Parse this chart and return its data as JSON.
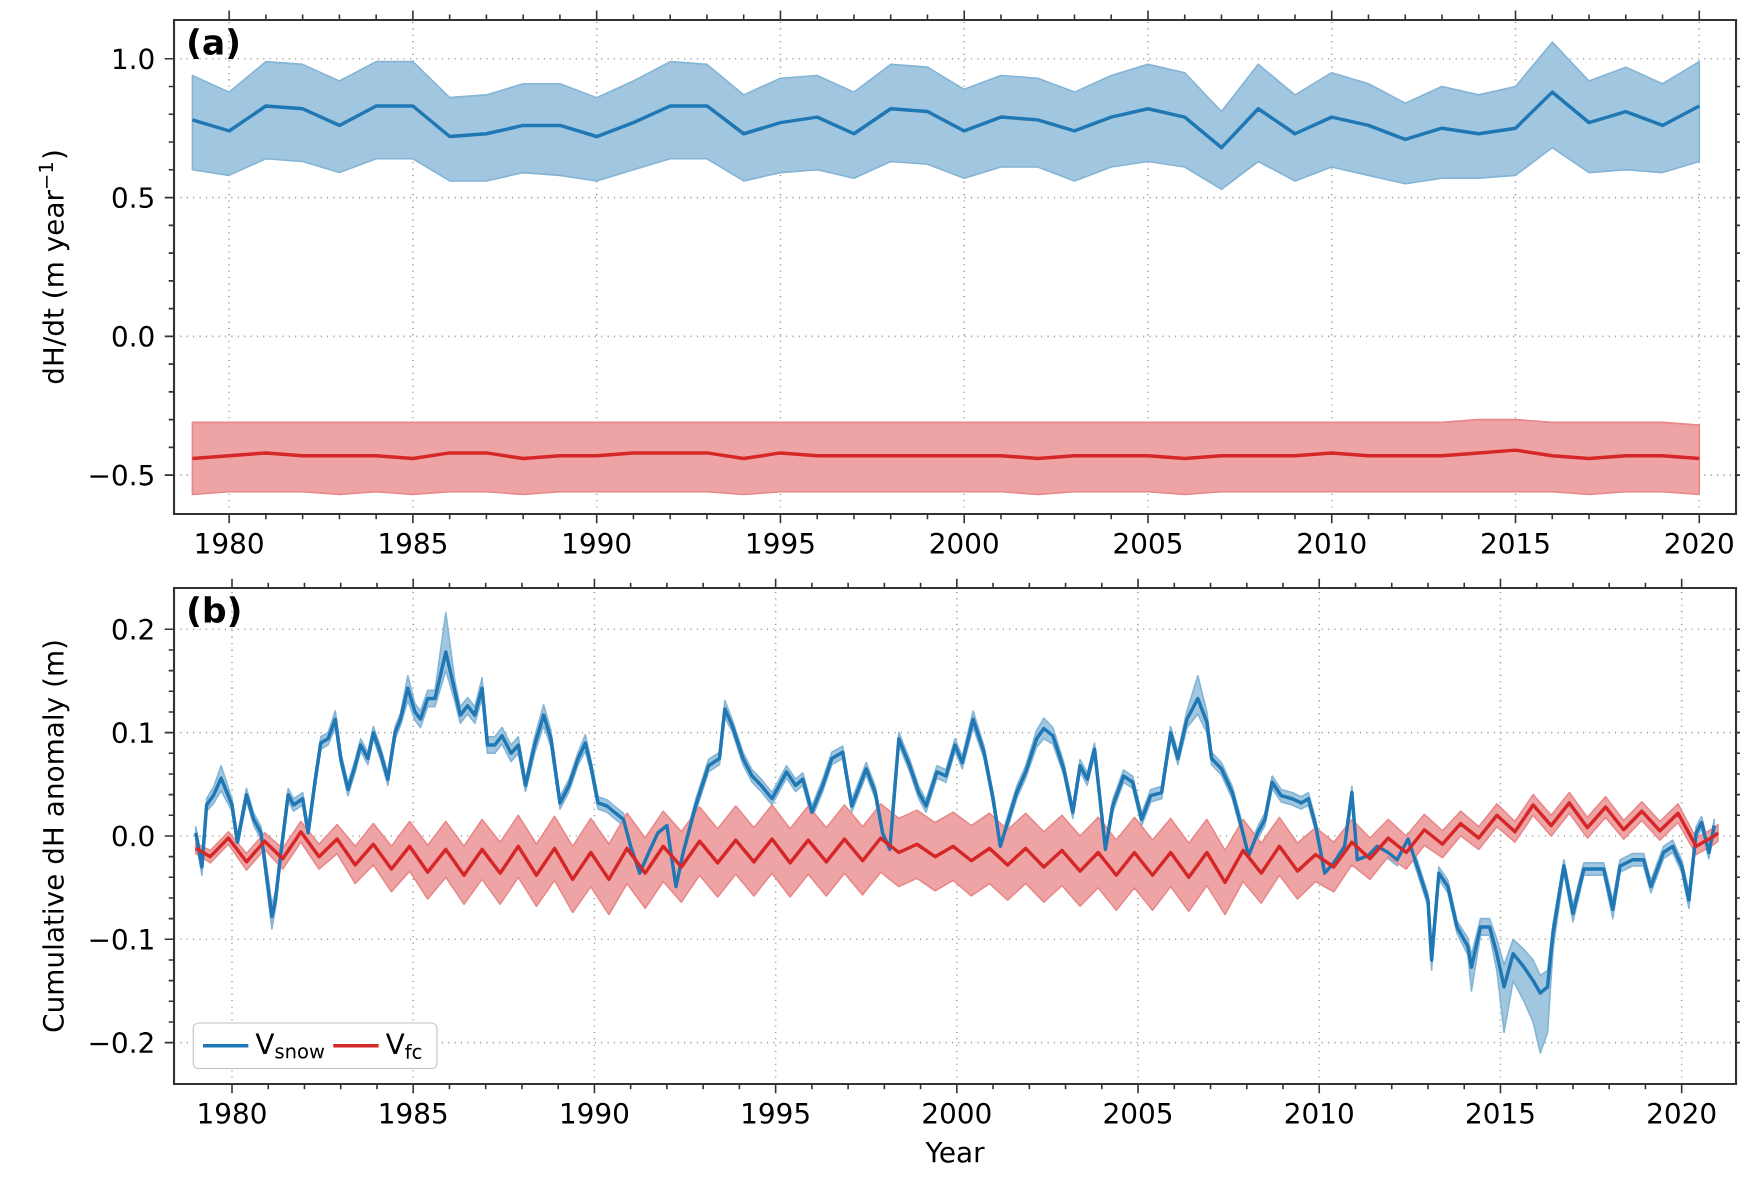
{
  "chart_data": [
    {
      "type": "line",
      "title": "(a)",
      "ylabel": "dH/dt (m year$^{−1}$)",
      "grid": true,
      "xlim": [
        1978.5,
        2021.0
      ],
      "ylim": [
        -0.64,
        1.14
      ],
      "xticks": [
        1980,
        1985,
        1990,
        1995,
        2000,
        2005,
        2010,
        2015,
        2020
      ],
      "yticks": [
        {
          "value": -0.5,
          "label": "−0.5"
        },
        {
          "value": 0.0,
          "label": "0.0"
        },
        {
          "value": 0.5,
          "label": "0.5"
        },
        {
          "value": 1.0,
          "label": "1.0"
        }
      ],
      "x": [
        1979,
        1980,
        1981,
        1982,
        1983,
        1984,
        1985,
        1986,
        1987,
        1988,
        1989,
        1990,
        1991,
        1992,
        1993,
        1994,
        1995,
        1996,
        1997,
        1998,
        1999,
        2000,
        2001,
        2002,
        2003,
        2004,
        2005,
        2006,
        2007,
        2008,
        2009,
        2010,
        2011,
        2012,
        2013,
        2014,
        2015,
        2016,
        2017,
        2018,
        2019,
        2020
      ],
      "series": [
        {
          "color": "#1f77b4",
          "values": [
            0.78,
            0.74,
            0.83,
            0.82,
            0.76,
            0.83,
            0.83,
            0.72,
            0.73,
            0.76,
            0.76,
            0.72,
            0.77,
            0.83,
            0.83,
            0.73,
            0.77,
            0.79,
            0.73,
            0.82,
            0.81,
            0.74,
            0.79,
            0.78,
            0.74,
            0.79,
            0.82,
            0.79,
            0.68,
            0.82,
            0.73,
            0.79,
            0.76,
            0.71,
            0.75,
            0.73,
            0.75,
            0.88,
            0.77,
            0.81,
            0.76,
            0.83
          ],
          "lower": [
            0.6,
            0.58,
            0.64,
            0.63,
            0.59,
            0.64,
            0.64,
            0.56,
            0.56,
            0.59,
            0.58,
            0.56,
            0.6,
            0.64,
            0.64,
            0.56,
            0.59,
            0.6,
            0.57,
            0.63,
            0.62,
            0.57,
            0.61,
            0.61,
            0.56,
            0.61,
            0.63,
            0.61,
            0.53,
            0.63,
            0.56,
            0.61,
            0.58,
            0.55,
            0.57,
            0.57,
            0.58,
            0.68,
            0.59,
            0.6,
            0.59,
            0.63
          ],
          "upper": [
            0.94,
            0.88,
            0.99,
            0.98,
            0.92,
            0.99,
            0.99,
            0.86,
            0.87,
            0.91,
            0.91,
            0.86,
            0.92,
            0.99,
            0.98,
            0.87,
            0.93,
            0.94,
            0.88,
            0.98,
            0.97,
            0.89,
            0.94,
            0.93,
            0.88,
            0.94,
            0.98,
            0.95,
            0.81,
            0.98,
            0.87,
            0.95,
            0.91,
            0.84,
            0.9,
            0.87,
            0.9,
            1.06,
            0.92,
            0.97,
            0.91,
            0.99
          ]
        },
        {
          "color": "#d62728",
          "values": [
            -0.44,
            -0.43,
            -0.42,
            -0.43,
            -0.43,
            -0.43,
            -0.44,
            -0.42,
            -0.42,
            -0.44,
            -0.43,
            -0.43,
            -0.42,
            -0.42,
            -0.42,
            -0.44,
            -0.42,
            -0.43,
            -0.43,
            -0.43,
            -0.43,
            -0.43,
            -0.43,
            -0.44,
            -0.43,
            -0.43,
            -0.43,
            -0.44,
            -0.43,
            -0.43,
            -0.43,
            -0.42,
            -0.43,
            -0.43,
            -0.43,
            -0.42,
            -0.41,
            -0.43,
            -0.44,
            -0.43,
            -0.43,
            -0.44
          ],
          "lower": [
            -0.57,
            -0.56,
            -0.56,
            -0.56,
            -0.57,
            -0.56,
            -0.57,
            -0.56,
            -0.56,
            -0.57,
            -0.56,
            -0.56,
            -0.56,
            -0.56,
            -0.56,
            -0.57,
            -0.56,
            -0.56,
            -0.56,
            -0.56,
            -0.56,
            -0.56,
            -0.56,
            -0.57,
            -0.56,
            -0.56,
            -0.56,
            -0.57,
            -0.56,
            -0.56,
            -0.56,
            -0.56,
            -0.56,
            -0.56,
            -0.56,
            -0.56,
            -0.56,
            -0.56,
            -0.57,
            -0.56,
            -0.56,
            -0.57
          ],
          "upper": [
            -0.31,
            -0.31,
            -0.31,
            -0.31,
            -0.31,
            -0.31,
            -0.31,
            -0.31,
            -0.31,
            -0.31,
            -0.31,
            -0.31,
            -0.31,
            -0.31,
            -0.31,
            -0.31,
            -0.31,
            -0.31,
            -0.31,
            -0.31,
            -0.31,
            -0.31,
            -0.31,
            -0.31,
            -0.31,
            -0.31,
            -0.31,
            -0.31,
            -0.31,
            -0.31,
            -0.31,
            -0.31,
            -0.31,
            -0.31,
            -0.31,
            -0.3,
            -0.3,
            -0.31,
            -0.31,
            -0.31,
            -0.31,
            -0.32
          ]
        }
      ]
    },
    {
      "type": "line",
      "title": "(b)",
      "xlabel": "Year",
      "ylabel": "Cumulative dH anomaly (m)",
      "grid": true,
      "legend": "bottom left",
      "xlim": [
        1978.4,
        2021.5
      ],
      "ylim": [
        -0.24,
        0.24
      ],
      "xticks": [
        1980,
        1985,
        1990,
        1995,
        2000,
        2005,
        2010,
        2015,
        2020
      ],
      "yticks": [
        {
          "value": -0.2,
          "label": "−0.2"
        },
        {
          "value": -0.1,
          "label": "−0.1"
        },
        {
          "value": 0.0,
          "label": "0.0"
        },
        {
          "value": 0.1,
          "label": "0.1"
        },
        {
          "value": 0.2,
          "label": "0.2"
        }
      ],
      "series": [
        {
          "name": "V$_{snow}$",
          "color": "#1f77b4",
          "x": [
            1979.0,
            1979.17,
            1979.3,
            1979.5,
            1979.7,
            1980.0,
            1980.15,
            1980.4,
            1980.6,
            1980.8,
            1981.1,
            1981.2,
            1981.35,
            1981.55,
            1981.7,
            1981.95,
            1982.1,
            1982.3,
            1982.45,
            1982.65,
            1982.85,
            1983.0,
            1983.2,
            1983.4,
            1983.55,
            1983.75,
            1983.9,
            1984.1,
            1984.3,
            1984.5,
            1984.65,
            1984.85,
            1985.05,
            1985.2,
            1985.4,
            1985.6,
            1985.9,
            1986.15,
            1986.3,
            1986.5,
            1986.7,
            1986.9,
            1987.05,
            1987.25,
            1987.45,
            1987.7,
            1987.9,
            1988.1,
            1988.35,
            1988.6,
            1988.8,
            1989.05,
            1989.3,
            1989.55,
            1989.75,
            1989.9,
            1990.1,
            1990.35,
            1990.55,
            1990.8,
            1991.0,
            1991.25,
            1991.5,
            1991.75,
            1992.0,
            1992.25,
            1992.45,
            1992.8,
            1993.15,
            1993.45,
            1993.6,
            1993.8,
            1994.1,
            1994.35,
            1994.6,
            1994.9,
            1995.3,
            1995.55,
            1995.75,
            1996.0,
            1996.3,
            1996.55,
            1996.85,
            1997.1,
            1997.5,
            1997.75,
            1997.95,
            1998.15,
            1998.4,
            1998.7,
            1998.95,
            1999.15,
            1999.45,
            1999.7,
            1999.95,
            2000.15,
            2000.45,
            2000.75,
            2001.0,
            2001.2,
            2001.4,
            2001.65,
            2001.9,
            2002.2,
            2002.4,
            2002.65,
            2002.95,
            2003.2,
            2003.4,
            2003.6,
            2003.8,
            2004.1,
            2004.3,
            2004.6,
            2004.85,
            2005.1,
            2005.35,
            2005.65,
            2005.9,
            2006.1,
            2006.35,
            2006.65,
            2006.9,
            2007.03,
            2007.3,
            2007.6,
            2007.8,
            2008.05,
            2008.3,
            2008.5,
            2008.7,
            2008.95,
            2009.25,
            2009.5,
            2009.7,
            2009.9,
            2010.15,
            2010.4,
            2010.7,
            2010.9,
            2011.05,
            2011.35,
            2011.6,
            2011.9,
            2012.15,
            2012.45,
            2012.7,
            2013.0,
            2013.1,
            2013.3,
            2013.55,
            2013.8,
            2014.1,
            2014.2,
            2014.45,
            2014.7,
            2014.9,
            2015.1,
            2015.35,
            2015.65,
            2015.9,
            2016.1,
            2016.3,
            2016.45,
            2016.75,
            2017.0,
            2017.3,
            2017.55,
            2017.85,
            2018.1,
            2018.3,
            2018.65,
            2018.95,
            2019.15,
            2019.5,
            2019.75,
            2020.0,
            2020.2,
            2020.4,
            2020.55,
            2020.75,
            2020.9
          ],
          "values": [
            0.003,
            -0.03,
            0.03,
            0.04,
            0.056,
            0.03,
            -0.006,
            0.04,
            0.016,
            0.003,
            -0.078,
            -0.062,
            -0.016,
            0.04,
            0.03,
            0.036,
            0.003,
            0.055,
            0.09,
            0.094,
            0.113,
            0.075,
            0.045,
            0.068,
            0.088,
            0.075,
            0.1,
            0.08,
            0.055,
            0.1,
            0.113,
            0.143,
            0.12,
            0.113,
            0.133,
            0.133,
            0.178,
            0.14,
            0.117,
            0.126,
            0.117,
            0.143,
            0.088,
            0.088,
            0.097,
            0.08,
            0.088,
            0.049,
            0.088,
            0.117,
            0.094,
            0.032,
            0.049,
            0.075,
            0.09,
            0.068,
            0.032,
            0.029,
            0.023,
            0.016,
            -0.01,
            -0.036,
            -0.016,
            0.003,
            0.01,
            -0.049,
            -0.016,
            0.03,
            0.068,
            0.075,
            0.123,
            0.107,
            0.075,
            0.058,
            0.049,
            0.036,
            0.062,
            0.049,
            0.055,
            0.023,
            0.049,
            0.075,
            0.081,
            0.029,
            0.065,
            0.042,
            0.003,
            -0.013,
            0.094,
            0.068,
            0.042,
            0.029,
            0.062,
            0.058,
            0.088,
            0.071,
            0.113,
            0.081,
            0.036,
            -0.01,
            0.013,
            0.042,
            0.062,
            0.094,
            0.104,
            0.097,
            0.065,
            0.023,
            0.068,
            0.055,
            0.084,
            -0.013,
            0.029,
            0.058,
            0.052,
            0.016,
            0.039,
            0.042,
            0.1,
            0.075,
            0.113,
            0.133,
            0.11,
            0.075,
            0.065,
            0.042,
            0.016,
            -0.019,
            0.003,
            0.016,
            0.052,
            0.039,
            0.036,
            0.032,
            0.036,
            0.01,
            -0.036,
            -0.026,
            -0.01,
            0.042,
            -0.023,
            -0.019,
            -0.01,
            -0.016,
            -0.023,
            -0.003,
            -0.029,
            -0.062,
            -0.12,
            -0.036,
            -0.049,
            -0.088,
            -0.107,
            -0.127,
            -0.088,
            -0.088,
            -0.114,
            -0.146,
            -0.114,
            -0.127,
            -0.14,
            -0.152,
            -0.146,
            -0.094,
            -0.029,
            -0.075,
            -0.032,
            -0.032,
            -0.032,
            -0.071,
            -0.029,
            -0.023,
            -0.023,
            -0.049,
            -0.016,
            -0.01,
            -0.029,
            -0.062,
            0.003,
            0.013,
            -0.016,
            0.01
          ],
          "lower": [
            -0.003,
            -0.038,
            0.024,
            0.032,
            0.044,
            0.024,
            -0.012,
            0.034,
            0.01,
            -0.003,
            -0.09,
            -0.07,
            -0.022,
            0.034,
            0.024,
            0.03,
            -0.003,
            0.049,
            0.084,
            0.088,
            0.105,
            0.069,
            0.039,
            0.062,
            0.082,
            0.069,
            0.094,
            0.074,
            0.049,
            0.094,
            0.107,
            0.131,
            0.112,
            0.105,
            0.125,
            0.125,
            0.16,
            0.13,
            0.109,
            0.118,
            0.109,
            0.133,
            0.08,
            0.08,
            0.089,
            0.072,
            0.08,
            0.043,
            0.08,
            0.107,
            0.086,
            0.026,
            0.043,
            0.069,
            0.082,
            0.062,
            0.026,
            0.023,
            0.017,
            0.01,
            -0.016,
            -0.042,
            -0.022,
            -0.003,
            0.004,
            -0.057,
            -0.022,
            0.024,
            0.062,
            0.069,
            0.115,
            0.101,
            0.069,
            0.052,
            0.043,
            0.03,
            0.056,
            0.043,
            0.049,
            0.017,
            0.043,
            0.069,
            0.075,
            0.023,
            0.059,
            0.036,
            -0.003,
            -0.021,
            0.088,
            0.062,
            0.036,
            0.023,
            0.056,
            0.052,
            0.082,
            0.065,
            0.105,
            0.075,
            0.03,
            -0.016,
            0.007,
            0.036,
            0.056,
            0.086,
            0.094,
            0.089,
            0.059,
            0.017,
            0.062,
            0.049,
            0.078,
            -0.019,
            0.023,
            0.052,
            0.046,
            0.01,
            0.033,
            0.036,
            0.094,
            0.069,
            0.105,
            0.118,
            0.1,
            0.069,
            0.059,
            0.036,
            0.01,
            -0.025,
            -0.003,
            0.01,
            0.046,
            0.033,
            0.03,
            0.026,
            0.03,
            0.004,
            -0.044,
            -0.032,
            -0.016,
            0.036,
            -0.029,
            -0.025,
            -0.016,
            -0.022,
            -0.029,
            -0.009,
            -0.035,
            -0.068,
            -0.13,
            -0.042,
            -0.055,
            -0.094,
            -0.115,
            -0.15,
            -0.096,
            -0.096,
            -0.13,
            -0.19,
            -0.14,
            -0.16,
            -0.18,
            -0.21,
            -0.19,
            -0.11,
            -0.035,
            -0.083,
            -0.038,
            -0.038,
            -0.038,
            -0.08,
            -0.035,
            -0.029,
            -0.029,
            -0.055,
            -0.022,
            -0.016,
            -0.035,
            -0.07,
            -0.003,
            0.007,
            -0.022,
            0.004
          ],
          "upper": [
            0.009,
            -0.022,
            0.036,
            0.048,
            0.068,
            0.036,
            0.0,
            0.046,
            0.022,
            0.009,
            -0.066,
            -0.054,
            -0.01,
            0.046,
            0.036,
            0.042,
            0.009,
            0.061,
            0.096,
            0.1,
            0.121,
            0.081,
            0.051,
            0.074,
            0.094,
            0.081,
            0.106,
            0.086,
            0.061,
            0.106,
            0.119,
            0.155,
            0.128,
            0.121,
            0.141,
            0.141,
            0.216,
            0.15,
            0.125,
            0.134,
            0.125,
            0.153,
            0.096,
            0.096,
            0.105,
            0.088,
            0.096,
            0.055,
            0.096,
            0.127,
            0.102,
            0.038,
            0.055,
            0.081,
            0.098,
            0.074,
            0.038,
            0.035,
            0.029,
            0.022,
            -0.004,
            -0.03,
            -0.01,
            0.009,
            0.016,
            -0.041,
            -0.01,
            0.036,
            0.074,
            0.081,
            0.131,
            0.113,
            0.081,
            0.064,
            0.055,
            0.042,
            0.068,
            0.055,
            0.061,
            0.029,
            0.055,
            0.081,
            0.087,
            0.035,
            0.071,
            0.048,
            0.009,
            -0.005,
            0.1,
            0.074,
            0.048,
            0.035,
            0.068,
            0.064,
            0.094,
            0.077,
            0.121,
            0.087,
            0.042,
            -0.004,
            0.019,
            0.048,
            0.068,
            0.102,
            0.114,
            0.105,
            0.071,
            0.029,
            0.074,
            0.061,
            0.09,
            -0.007,
            0.035,
            0.064,
            0.058,
            0.022,
            0.045,
            0.048,
            0.106,
            0.081,
            0.121,
            0.155,
            0.12,
            0.081,
            0.071,
            0.048,
            0.022,
            -0.013,
            0.009,
            0.022,
            0.058,
            0.045,
            0.042,
            0.038,
            0.042,
            0.016,
            -0.028,
            -0.02,
            -0.004,
            0.048,
            -0.017,
            -0.013,
            -0.004,
            -0.01,
            -0.017,
            0.003,
            -0.023,
            -0.056,
            -0.11,
            -0.03,
            -0.043,
            -0.082,
            -0.099,
            -0.115,
            -0.08,
            -0.08,
            -0.1,
            -0.125,
            -0.1,
            -0.11,
            -0.12,
            -0.135,
            -0.13,
            -0.085,
            -0.023,
            -0.067,
            -0.026,
            -0.026,
            -0.026,
            -0.062,
            -0.023,
            -0.017,
            -0.017,
            -0.043,
            -0.01,
            -0.004,
            -0.023,
            -0.054,
            0.009,
            0.019,
            -0.01,
            0.016
          ]
        },
        {
          "name": "V$_{fc}$",
          "color": "#d62728",
          "x": [
            1979.0,
            1979.4,
            1979.9,
            1980.4,
            1980.9,
            1981.4,
            1981.9,
            1982.4,
            1982.9,
            1983.4,
            1983.9,
            1984.4,
            1984.9,
            1985.4,
            1985.9,
            1986.4,
            1986.9,
            1987.4,
            1987.9,
            1988.4,
            1988.9,
            1989.4,
            1989.9,
            1990.4,
            1990.9,
            1991.4,
            1991.9,
            1992.4,
            1992.9,
            1993.4,
            1993.9,
            1994.4,
            1994.9,
            1995.4,
            1995.9,
            1996.4,
            1996.9,
            1997.4,
            1997.9,
            1998.4,
            1998.9,
            1999.4,
            1999.9,
            2000.4,
            2000.9,
            2001.4,
            2001.9,
            2002.4,
            2002.9,
            2003.4,
            2003.9,
            2004.4,
            2004.9,
            2005.4,
            2005.9,
            2006.4,
            2006.9,
            2007.4,
            2007.9,
            2008.4,
            2008.9,
            2009.4,
            2009.9,
            2010.4,
            2010.9,
            2011.4,
            2011.9,
            2012.4,
            2012.9,
            2013.4,
            2013.9,
            2014.4,
            2014.9,
            2015.4,
            2015.9,
            2016.4,
            2016.9,
            2017.4,
            2017.9,
            2018.4,
            2018.9,
            2019.4,
            2019.9,
            2020.4,
            2020.9,
            2021.0
          ],
          "values": [
            -0.012,
            -0.02,
            -0.002,
            -0.025,
            -0.005,
            -0.022,
            0.004,
            -0.02,
            -0.003,
            -0.028,
            -0.008,
            -0.032,
            -0.01,
            -0.035,
            -0.013,
            -0.038,
            -0.013,
            -0.036,
            -0.01,
            -0.038,
            -0.012,
            -0.042,
            -0.016,
            -0.042,
            -0.012,
            -0.036,
            -0.01,
            -0.03,
            -0.005,
            -0.026,
            -0.004,
            -0.025,
            -0.003,
            -0.026,
            -0.004,
            -0.025,
            -0.003,
            -0.024,
            -0.002,
            -0.016,
            -0.008,
            -0.02,
            -0.01,
            -0.024,
            -0.012,
            -0.028,
            -0.012,
            -0.03,
            -0.014,
            -0.034,
            -0.016,
            -0.038,
            -0.016,
            -0.038,
            -0.016,
            -0.04,
            -0.016,
            -0.045,
            -0.014,
            -0.036,
            -0.01,
            -0.034,
            -0.018,
            -0.03,
            -0.006,
            -0.022,
            -0.002,
            -0.016,
            0.006,
            -0.008,
            0.012,
            -0.002,
            0.02,
            0.004,
            0.03,
            0.01,
            0.032,
            0.008,
            0.028,
            0.006,
            0.024,
            0.005,
            0.022,
            -0.01,
            0.0,
            0.003
          ],
          "lower": [
            -0.017,
            -0.026,
            -0.008,
            -0.033,
            -0.013,
            -0.032,
            -0.006,
            -0.032,
            -0.017,
            -0.046,
            -0.028,
            -0.054,
            -0.034,
            -0.061,
            -0.04,
            -0.066,
            -0.042,
            -0.066,
            -0.04,
            -0.068,
            -0.043,
            -0.074,
            -0.049,
            -0.076,
            -0.046,
            -0.07,
            -0.044,
            -0.064,
            -0.038,
            -0.059,
            -0.037,
            -0.058,
            -0.036,
            -0.059,
            -0.037,
            -0.058,
            -0.036,
            -0.057,
            -0.035,
            -0.049,
            -0.041,
            -0.053,
            -0.043,
            -0.058,
            -0.046,
            -0.062,
            -0.046,
            -0.064,
            -0.048,
            -0.068,
            -0.05,
            -0.072,
            -0.05,
            -0.072,
            -0.049,
            -0.073,
            -0.048,
            -0.076,
            -0.044,
            -0.065,
            -0.038,
            -0.061,
            -0.044,
            -0.054,
            -0.028,
            -0.042,
            -0.02,
            -0.032,
            -0.009,
            -0.021,
            0.0,
            -0.013,
            0.009,
            -0.006,
            0.02,
            0.0,
            0.022,
            -0.002,
            0.018,
            -0.003,
            0.015,
            -0.004,
            0.013,
            -0.018,
            -0.008,
            -0.005
          ],
          "upper": [
            -0.007,
            -0.014,
            0.004,
            -0.017,
            0.003,
            -0.012,
            0.014,
            -0.008,
            0.011,
            -0.01,
            0.012,
            -0.01,
            0.014,
            -0.009,
            0.014,
            -0.01,
            0.016,
            -0.006,
            0.02,
            -0.008,
            0.019,
            -0.01,
            0.017,
            -0.008,
            0.022,
            -0.002,
            0.024,
            0.004,
            0.028,
            0.007,
            0.029,
            0.008,
            0.03,
            0.007,
            0.029,
            0.008,
            0.03,
            0.009,
            0.031,
            0.017,
            0.025,
            0.013,
            0.023,
            0.01,
            0.022,
            0.006,
            0.022,
            0.004,
            0.02,
            0.0,
            0.018,
            -0.004,
            0.018,
            -0.004,
            0.017,
            -0.007,
            0.016,
            -0.014,
            0.016,
            -0.007,
            0.018,
            -0.007,
            0.008,
            -0.006,
            0.016,
            -0.002,
            0.016,
            0.0,
            0.021,
            0.005,
            0.024,
            0.009,
            0.031,
            0.014,
            0.04,
            0.02,
            0.042,
            0.018,
            0.038,
            0.015,
            0.033,
            0.014,
            0.031,
            -0.002,
            0.008,
            0.011
          ]
        }
      ]
    }
  ]
}
